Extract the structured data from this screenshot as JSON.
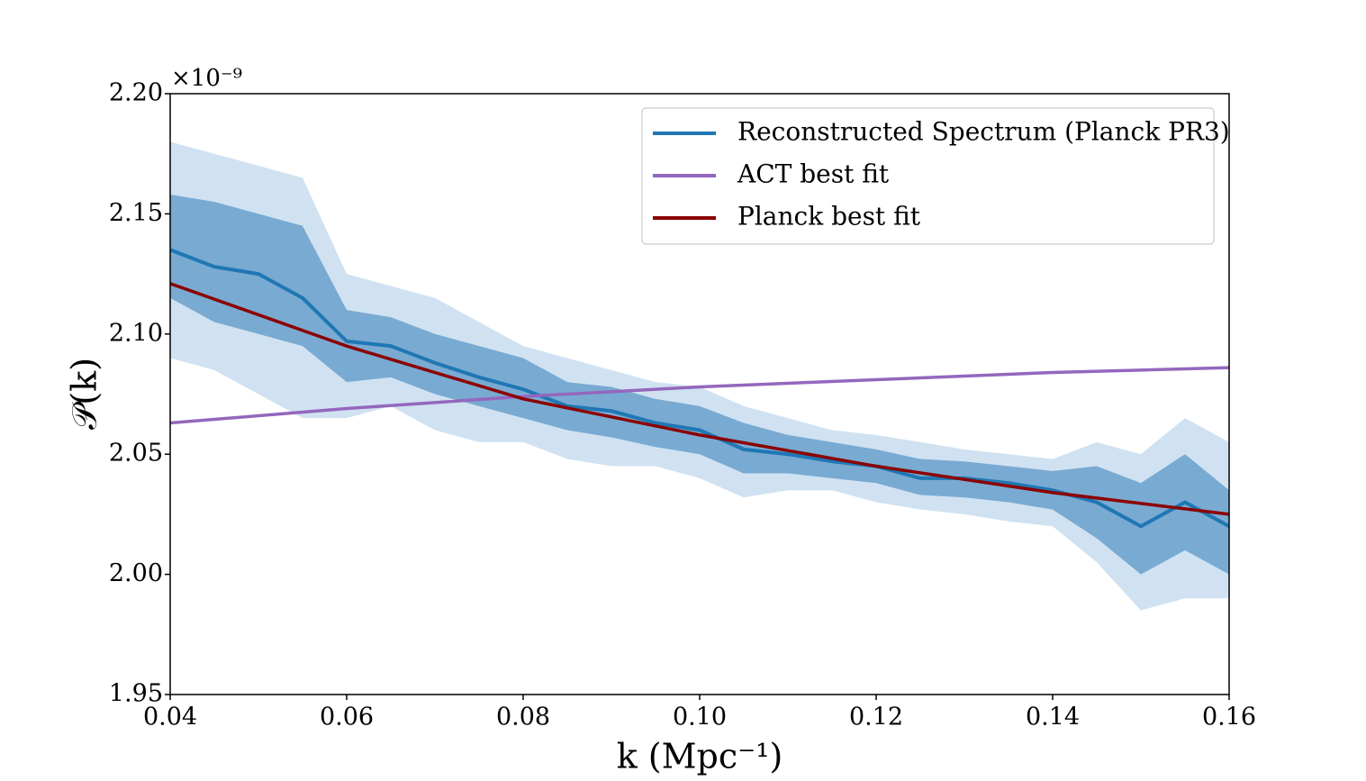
{
  "chart_data": {
    "type": "line",
    "x_label": "k (Mpc⁻¹)",
    "y_label": "𝒫(k)",
    "y_offset_label": "×10⁻⁹",
    "xlim": [
      0.04,
      0.16
    ],
    "ylim": [
      1.95,
      2.2
    ],
    "xticks": [
      0.04,
      0.06,
      0.08,
      {
        "value": 0.1,
        "label": "0.10"
      },
      0.12,
      0.14,
      0.16
    ],
    "yticks": [
      1.95,
      {
        "value": 2.0,
        "label": "2.00"
      },
      2.05,
      {
        "value": 2.1,
        "label": "2.10"
      },
      2.15,
      {
        "value": 2.2,
        "label": "2.20"
      }
    ],
    "legend": "upper right",
    "x": [
      0.04,
      0.045,
      0.05,
      0.055,
      0.06,
      0.065,
      0.07,
      0.075,
      0.08,
      0.085,
      0.09,
      0.095,
      0.1,
      0.105,
      0.11,
      0.115,
      0.12,
      0.125,
      0.13,
      0.135,
      0.14,
      0.145,
      0.15,
      0.155,
      0.16
    ],
    "bands": [
      {
        "color": "#a9cbe6",
        "opacity": 0.55,
        "lower": [
          2.09,
          2.085,
          2.075,
          2.065,
          2.065,
          2.07,
          2.06,
          2.055,
          2.055,
          2.048,
          2.045,
          2.045,
          2.04,
          2.032,
          2.035,
          2.035,
          2.03,
          2.027,
          2.025,
          2.022,
          2.02,
          2.005,
          1.985,
          1.99,
          1.99
        ],
        "upper": [
          2.18,
          2.175,
          2.17,
          2.165,
          2.125,
          2.12,
          2.115,
          2.105,
          2.095,
          2.09,
          2.085,
          2.08,
          2.078,
          2.07,
          2.065,
          2.06,
          2.058,
          2.055,
          2.052,
          2.05,
          2.048,
          2.055,
          2.05,
          2.065,
          2.055
        ]
      },
      {
        "color": "#4a8cc2",
        "opacity": 0.65,
        "lower": [
          2.115,
          2.105,
          2.1,
          2.095,
          2.08,
          2.082,
          2.075,
          2.07,
          2.065,
          2.06,
          2.057,
          2.053,
          2.05,
          2.042,
          2.042,
          2.04,
          2.038,
          2.033,
          2.032,
          2.03,
          2.027,
          2.015,
          2.0,
          2.01,
          2.0
        ],
        "upper": [
          2.158,
          2.155,
          2.15,
          2.145,
          2.11,
          2.107,
          2.1,
          2.095,
          2.09,
          2.08,
          2.078,
          2.073,
          2.07,
          2.063,
          2.058,
          2.055,
          2.052,
          2.048,
          2.047,
          2.045,
          2.043,
          2.045,
          2.038,
          2.05,
          2.035
        ]
      }
    ],
    "series": [
      {
        "name": "Reconstructed Spectrum (Planck PR3)",
        "color": "#1f77b4",
        "values": [
          2.135,
          2.128,
          2.125,
          2.115,
          2.097,
          2.095,
          2.088,
          2.082,
          2.077,
          2.07,
          2.068,
          2.063,
          2.06,
          2.052,
          2.05,
          2.047,
          2.045,
          2.04,
          2.04,
          2.038,
          2.035,
          2.03,
          2.02,
          2.03,
          2.02
        ]
      },
      {
        "name": "ACT best fit",
        "color": "#9467bd",
        "x": [
          0.04,
          0.06,
          0.08,
          0.1,
          0.12,
          0.14,
          0.16
        ],
        "values": [
          2.063,
          2.069,
          2.074,
          2.078,
          2.081,
          2.084,
          2.086
        ]
      },
      {
        "name": "Planck best fit",
        "color": "#8b0000",
        "x": [
          0.04,
          0.06,
          0.08,
          0.1,
          0.12,
          0.14,
          0.16
        ],
        "values": [
          2.121,
          2.095,
          2.073,
          2.058,
          2.045,
          2.034,
          2.025
        ]
      }
    ]
  }
}
